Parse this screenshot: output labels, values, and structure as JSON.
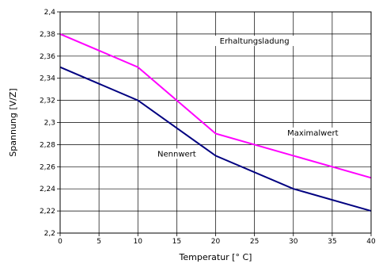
{
  "chart_data": {
    "type": "line",
    "xlabel": "Temperatur [° C]",
    "ylabel": "Spannung [V/Z]",
    "xlim": [
      0,
      40
    ],
    "ylim": [
      2.2,
      2.4
    ],
    "xticks": [
      0,
      5,
      10,
      15,
      20,
      25,
      30,
      35,
      40
    ],
    "xtick_labels": [
      "0",
      "5",
      "10",
      "15",
      "20",
      "25",
      "30",
      "35",
      "40"
    ],
    "yticks": [
      2.2,
      2.22,
      2.24,
      2.26,
      2.28,
      2.3,
      2.32,
      2.34,
      2.36,
      2.38,
      2.4
    ],
    "ytick_labels": [
      "2,2",
      "2,22",
      "2,24",
      "2,26",
      "2,28",
      "2,3",
      "2,32",
      "2,34",
      "2,36",
      "2,38",
      "2,4"
    ],
    "grid": true,
    "legend": "none",
    "series": [
      {
        "color": "#ff00ff",
        "x": [
          0,
          10,
          20,
          30,
          40
        ],
        "y": [
          2.38,
          2.35,
          2.29,
          2.27,
          2.25
        ]
      },
      {
        "color": "#000080",
        "x": [
          0,
          10,
          20,
          30,
          40
        ],
        "y": [
          2.35,
          2.32,
          2.27,
          2.24,
          2.22
        ]
      }
    ],
    "annotations": [
      {
        "text": "Erhaltungsladung",
        "x": 25,
        "y": 2.372
      },
      {
        "text": "Maximalwert",
        "x": 32.5,
        "y": 2.289
      },
      {
        "text": "Nennwert",
        "x": 15,
        "y": 2.27
      }
    ]
  }
}
